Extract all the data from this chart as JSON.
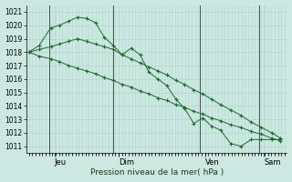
{
  "background_color": "#cce8e0",
  "grid_color": "#b0d8d0",
  "line_color": "#1a6b2a",
  "title": "Pression niveau de la mer( hPa )",
  "ylim": [
    1010.5,
    1021.5
  ],
  "yticks": [
    1011,
    1012,
    1013,
    1014,
    1015,
    1016,
    1017,
    1018,
    1019,
    1020,
    1021
  ],
  "day_labels": [
    "Jeu",
    "Dim",
    "Ven",
    "Sam"
  ],
  "vline_x": [
    0.083,
    0.33,
    0.69,
    0.9
  ],
  "s1x": [
    0.0,
    0.04,
    0.085,
    0.12,
    0.155,
    0.19,
    0.225,
    0.26,
    0.295,
    0.33,
    0.365,
    0.4,
    0.435,
    0.47,
    0.505,
    0.54,
    0.575,
    0.61,
    0.645,
    0.68,
    0.715,
    0.75,
    0.79,
    0.83,
    0.87,
    0.91,
    0.95,
    0.985
  ],
  "s1y": [
    1018.0,
    1018.5,
    1019.8,
    1020.0,
    1020.3,
    1020.6,
    1020.5,
    1020.2,
    1019.1,
    1018.5,
    1017.8,
    1018.3,
    1017.8,
    1016.5,
    1016.0,
    1015.5,
    1014.5,
    1013.8,
    1012.7,
    1013.1,
    1012.5,
    1012.2,
    1011.2,
    1011.0,
    1011.5,
    1011.5,
    1011.5,
    1011.5
  ],
  "s2x": [
    0.0,
    0.04,
    0.085,
    0.12,
    0.155,
    0.19,
    0.225,
    0.26,
    0.295,
    0.33,
    0.365,
    0.4,
    0.435,
    0.47,
    0.505,
    0.54,
    0.575,
    0.61,
    0.645,
    0.68,
    0.715,
    0.75,
    0.79,
    0.83,
    0.87,
    0.91,
    0.95,
    0.985
  ],
  "s2y": [
    1018.0,
    1018.2,
    1018.4,
    1018.6,
    1018.8,
    1019.0,
    1018.8,
    1018.6,
    1018.4,
    1018.2,
    1017.8,
    1017.5,
    1017.2,
    1016.9,
    1016.6,
    1016.3,
    1015.9,
    1015.6,
    1015.2,
    1014.9,
    1014.5,
    1014.1,
    1013.7,
    1013.3,
    1012.8,
    1012.4,
    1012.0,
    1011.6
  ],
  "s3x": [
    0.0,
    0.04,
    0.085,
    0.12,
    0.155,
    0.19,
    0.225,
    0.26,
    0.295,
    0.33,
    0.365,
    0.4,
    0.435,
    0.47,
    0.505,
    0.54,
    0.575,
    0.61,
    0.645,
    0.68,
    0.715,
    0.75,
    0.79,
    0.83,
    0.87,
    0.91,
    0.95,
    0.985
  ],
  "s3y": [
    1018.0,
    1017.7,
    1017.5,
    1017.3,
    1017.0,
    1016.8,
    1016.6,
    1016.4,
    1016.1,
    1015.9,
    1015.6,
    1015.4,
    1015.1,
    1014.9,
    1014.6,
    1014.4,
    1014.1,
    1013.9,
    1013.6,
    1013.4,
    1013.1,
    1012.9,
    1012.6,
    1012.4,
    1012.1,
    1011.9,
    1011.6,
    1011.4
  ]
}
